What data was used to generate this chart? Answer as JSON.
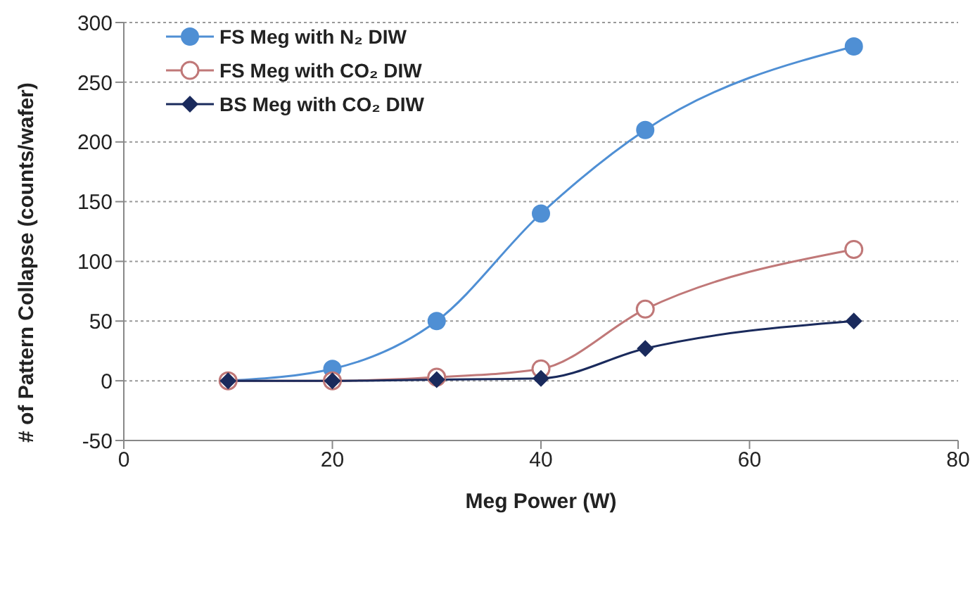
{
  "chart_data": {
    "type": "line",
    "xlabel": "Meg Power (W)",
    "ylabel": "# of Pattern Collapse (counts/wafer)",
    "x": [
      10,
      20,
      30,
      40,
      50,
      70
    ],
    "series": [
      {
        "name": "FS Meg with N₂ DIW",
        "color": "#4f8fd4",
        "marker": "circle",
        "values": [
          0,
          10,
          50,
          140,
          210,
          280
        ]
      },
      {
        "name": "FS Meg with CO₂ DIW",
        "color": "#c07878",
        "marker": "open-circle",
        "values": [
          0,
          0,
          3,
          10,
          60,
          110
        ]
      },
      {
        "name": "BS Meg with CO₂ DIW",
        "color": "#1a2a5c",
        "marker": "diamond",
        "values": [
          0,
          0,
          1,
          2,
          27,
          50
        ]
      }
    ],
    "xlim": [
      0,
      80
    ],
    "xticks": [
      0,
      20,
      40,
      60,
      80
    ],
    "ylim": [
      -50,
      300
    ],
    "yticks": [
      -50,
      0,
      50,
      100,
      150,
      200,
      250,
      300
    ],
    "grid": "y",
    "legend": "top left",
    "line_style": "solid"
  }
}
